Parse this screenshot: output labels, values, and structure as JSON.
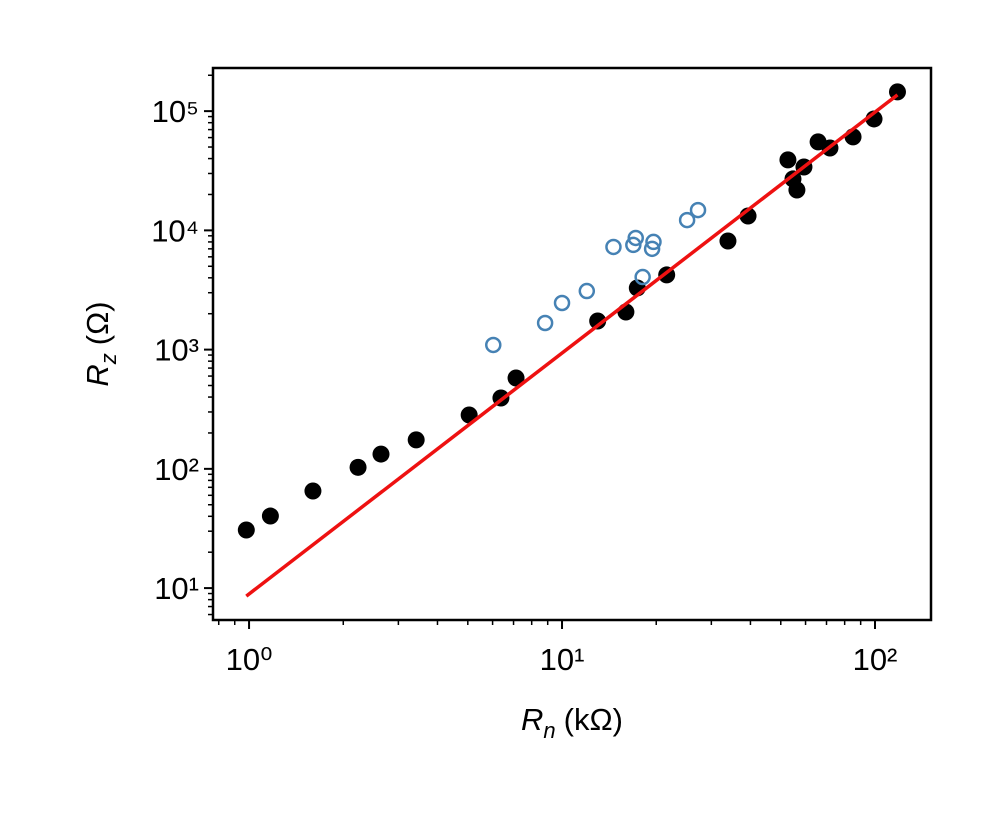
{
  "chart_data": {
    "type": "scatter",
    "x_label": {
      "symbol": "R",
      "subscript": "n",
      "unit": "(kΩ)"
    },
    "y_label": {
      "symbol": "R",
      "subscript": "z",
      "unit": "(Ω)"
    },
    "xscale": "log",
    "yscale": "log",
    "minor_ticks": true,
    "xlim": [
      0.767,
      151
    ],
    "ylim": [
      5.4,
      230000
    ],
    "xticks": [
      {
        "value": 1,
        "label": "10⁰"
      },
      {
        "value": 10,
        "label": "10¹"
      },
      {
        "value": 100,
        "label": "10²"
      }
    ],
    "yticks": [
      {
        "value": 10,
        "label": "10¹"
      },
      {
        "value": 100,
        "label": "10²"
      },
      {
        "value": 1000,
        "label": "10³"
      },
      {
        "value": 10000,
        "label": "10⁴"
      },
      {
        "value": 100000,
        "label": "10⁵"
      }
    ],
    "series": [
      {
        "style": "filled",
        "color": "#000000",
        "x": [
          0.98,
          1.17,
          1.6,
          2.23,
          2.64,
          3.42,
          5.05,
          6.38,
          7.13,
          13.0,
          16.0,
          17.4,
          21.6,
          33.9,
          39.3,
          52.7,
          54.7,
          56.3,
          59.3,
          65.8,
          71.8,
          85.1,
          99.3,
          118
        ],
        "values": [
          30.7,
          40.2,
          65.2,
          103,
          133,
          175,
          283,
          393,
          578,
          1738,
          2066,
          3290,
          4230,
          8150,
          13200,
          39000,
          27000,
          21800,
          34000,
          55200,
          49100,
          60800,
          86000,
          145000
        ]
      },
      {
        "style": "open",
        "color": "#4682b4",
        "x": [
          6.03,
          8.83,
          10.0,
          12.0,
          14.6,
          16.9,
          17.2,
          19.6,
          19.4,
          18.1,
          25.1,
          27.2
        ],
        "values": [
          1094,
          1672,
          2460,
          3100,
          7260,
          7550,
          8640,
          8000,
          7000,
          4060,
          12200,
          14800
        ]
      },
      {
        "style": "line",
        "color": "#ee1111",
        "x": [
          0.98,
          118
        ],
        "values": [
          8.57,
          137000
        ]
      }
    ]
  }
}
